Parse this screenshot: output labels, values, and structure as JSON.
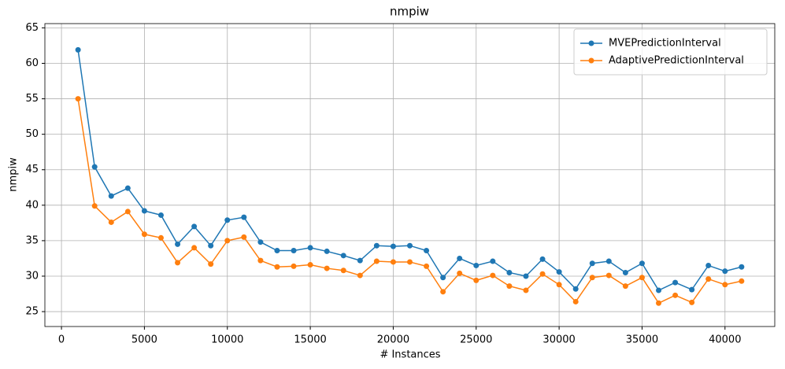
{
  "chart_data": {
    "type": "line",
    "title": "nmpiw",
    "xlabel": "# Instances",
    "ylabel": "nmpiw",
    "x": [
      1000,
      2000,
      3000,
      4000,
      5000,
      6000,
      7000,
      8000,
      9000,
      10000,
      11000,
      12000,
      13000,
      14000,
      15000,
      16000,
      17000,
      18000,
      19000,
      20000,
      21000,
      22000,
      23000,
      24000,
      25000,
      26000,
      27000,
      28000,
      29000,
      30000,
      31000,
      32000,
      33000,
      34000,
      35000,
      36000,
      37000,
      38000,
      39000,
      40000,
      41000
    ],
    "series": [
      {
        "name": "MVEPredictionInterval",
        "color": "#1f77b4",
        "values": [
          61.9,
          45.4,
          41.3,
          42.4,
          39.2,
          38.6,
          34.5,
          37.0,
          34.3,
          37.9,
          38.3,
          34.8,
          33.6,
          33.6,
          34.0,
          33.5,
          32.9,
          32.2,
          34.3,
          34.2,
          34.3,
          33.6,
          29.8,
          32.5,
          31.5,
          32.1,
          30.5,
          30.0,
          32.4,
          30.6,
          28.2,
          31.8,
          32.1,
          30.5,
          31.8,
          28.0,
          29.1,
          28.1,
          31.5,
          30.7,
          31.3
        ]
      },
      {
        "name": "AdaptivePredictionInterval",
        "color": "#ff7f0e",
        "values": [
          55.0,
          39.9,
          37.6,
          39.1,
          35.9,
          35.4,
          31.9,
          34.0,
          31.7,
          35.0,
          35.5,
          32.2,
          31.3,
          31.4,
          31.6,
          31.1,
          30.8,
          30.1,
          32.1,
          32.0,
          32.0,
          31.4,
          27.8,
          30.4,
          29.4,
          30.1,
          28.6,
          28.0,
          30.3,
          28.8,
          26.4,
          29.8,
          30.1,
          28.6,
          29.8,
          26.2,
          27.3,
          26.3,
          29.6,
          28.8,
          29.3
        ]
      }
    ],
    "xlim": [
      -1000,
      43000
    ],
    "ylim": [
      22.9,
      65.6
    ],
    "xticks": [
      0,
      5000,
      10000,
      15000,
      20000,
      25000,
      30000,
      35000,
      40000
    ],
    "yticks": [
      25,
      30,
      35,
      40,
      45,
      50,
      55,
      60,
      65
    ],
    "grid": true,
    "legend": "upper right"
  }
}
